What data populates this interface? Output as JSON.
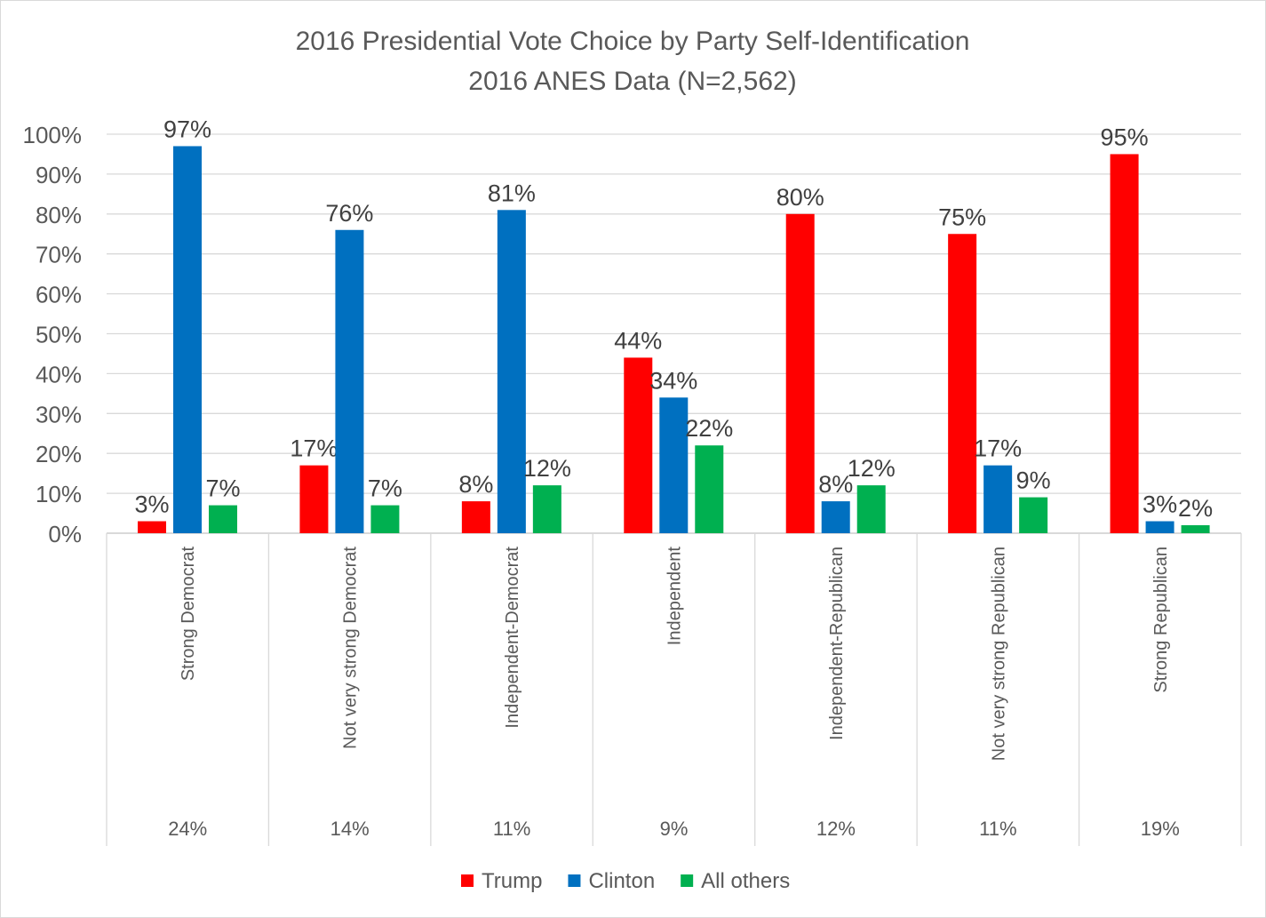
{
  "chart_data": {
    "type": "bar",
    "title": "2016 Presidential Vote Choice by Party Self-Identification",
    "subtitle": "2016 ANES Data (N=2,562)",
    "xlabel": "",
    "ylabel": "",
    "ylim": [
      0,
      100
    ],
    "yticks": [
      "0%",
      "10%",
      "20%",
      "30%",
      "40%",
      "50%",
      "60%",
      "70%",
      "80%",
      "90%",
      "100%"
    ],
    "grid": true,
    "legend_position": "bottom",
    "categories": [
      "Strong Democrat",
      "Not very strong Democrat",
      "Independent-Democrat",
      "Independent",
      "Independent-Republican",
      "Not very strong Republican",
      "Strong Republican"
    ],
    "category_shares": [
      "24%",
      "14%",
      "11%",
      "9%",
      "12%",
      "11%",
      "19%"
    ],
    "series": [
      {
        "name": "Trump",
        "color": "#FF0000",
        "values": [
          3,
          17,
          8,
          44,
          80,
          75,
          95
        ]
      },
      {
        "name": "Clinton",
        "color": "#0070C0",
        "values": [
          97,
          76,
          81,
          34,
          8,
          17,
          3
        ]
      },
      {
        "name": "All others",
        "color": "#00B050",
        "values": [
          7,
          7,
          12,
          22,
          12,
          9,
          2
        ]
      }
    ]
  }
}
